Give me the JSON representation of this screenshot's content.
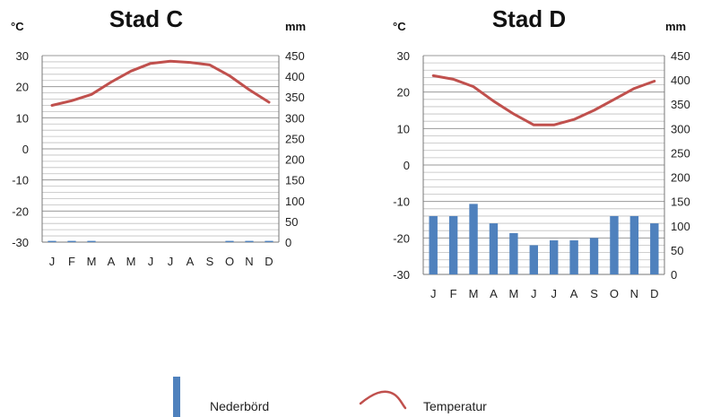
{
  "chart_data": [
    {
      "type": "bar+line",
      "title": "Stad C",
      "left_unit": "°C",
      "right_unit": "mm",
      "categories": [
        "J",
        "F",
        "M",
        "A",
        "M",
        "J",
        "J",
        "A",
        "S",
        "O",
        "N",
        "D"
      ],
      "temperature": {
        "name": "Temperatur",
        "values": [
          14,
          15.5,
          17.5,
          21.5,
          25,
          27.5,
          28.2,
          27.8,
          27,
          23.5,
          19,
          15
        ]
      },
      "precipitation": {
        "name": "Nederbörd",
        "values": [
          3,
          3,
          3,
          0,
          0,
          0,
          0,
          0,
          0,
          3,
          3,
          3
        ]
      },
      "temp_axis": {
        "min": -30,
        "max": 30,
        "ticks": [
          "30",
          "20",
          "10",
          "0",
          "-10",
          "-20",
          "-30"
        ]
      },
      "precip_axis": {
        "min": 0,
        "max": 450,
        "ticks": [
          "450",
          "400",
          "350",
          "300",
          "250",
          "200",
          "150",
          "100",
          "50",
          "0"
        ]
      },
      "colors": {
        "temperature": "#c0504d",
        "precipitation": "#4f81bd",
        "grid": "#bfbfbf"
      }
    },
    {
      "type": "bar+line",
      "title": "Stad D",
      "left_unit": "°C",
      "right_unit": "mm",
      "categories": [
        "J",
        "F",
        "M",
        "A",
        "M",
        "J",
        "J",
        "A",
        "S",
        "O",
        "N",
        "D"
      ],
      "temperature": {
        "name": "Temperatur",
        "values": [
          24.5,
          23.5,
          21.5,
          17.5,
          14,
          11,
          11,
          12.5,
          15,
          18,
          21,
          23
        ]
      },
      "precipitation": {
        "name": "Nederbörd",
        "values": [
          120,
          120,
          145,
          105,
          85,
          60,
          70,
          70,
          75,
          120,
          120,
          105
        ]
      },
      "temp_axis": {
        "min": -30,
        "max": 30,
        "ticks": [
          "30",
          "20",
          "10",
          "0",
          "-10",
          "-20",
          "-30"
        ]
      },
      "precip_axis": {
        "min": 0,
        "max": 450,
        "ticks": [
          "450",
          "400",
          "350",
          "300",
          "250",
          "200",
          "150",
          "100",
          "50",
          "0"
        ]
      },
      "colors": {
        "temperature": "#c0504d",
        "precipitation": "#4f81bd",
        "grid": "#bfbfbf"
      }
    }
  ],
  "legend": {
    "precipitation_label": "Nederbörd",
    "temperature_label": "Temperatur"
  }
}
